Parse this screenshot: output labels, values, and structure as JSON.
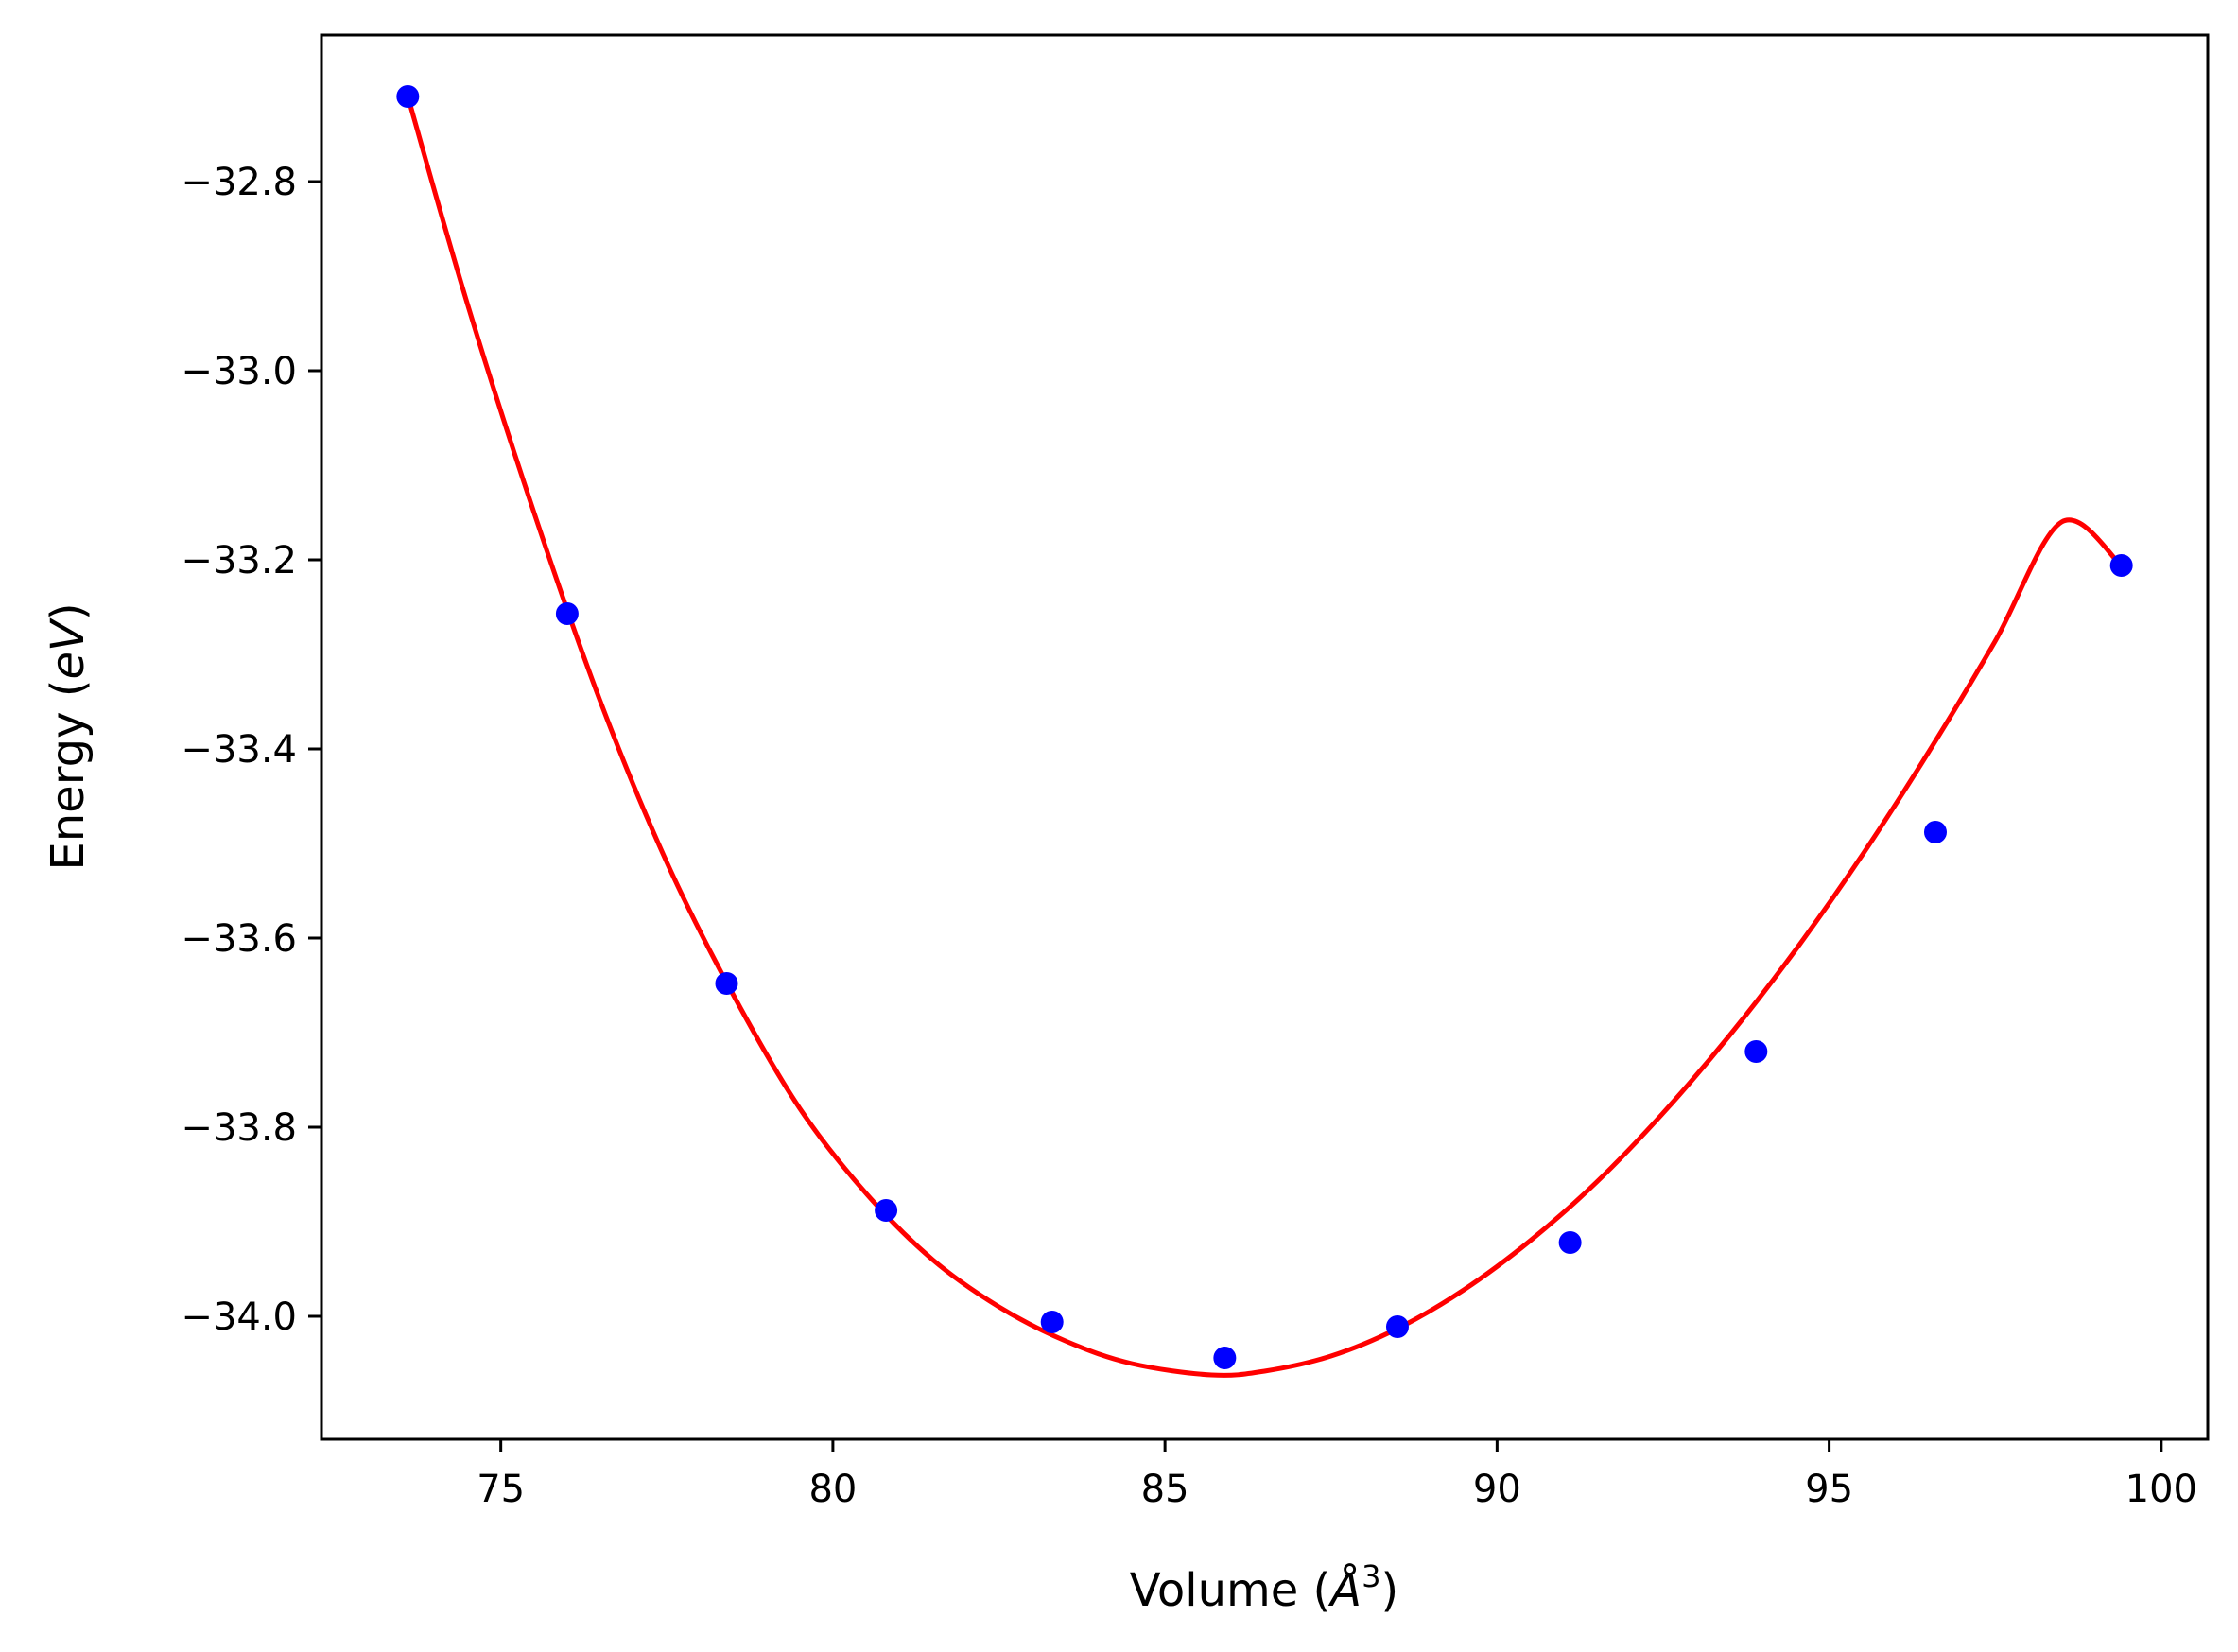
{
  "chart_data": {
    "type": "scatter",
    "title": "",
    "xlabel_parts": {
      "prefix": "Volume (",
      "unit": "Å",
      "exponent": "3",
      "suffix": ")"
    },
    "ylabel_parts": {
      "prefix": "Energy (",
      "unit": "eV",
      "suffix": ")"
    },
    "xlim": [
      72.3,
      100.7
    ],
    "ylim": [
      -34.13,
      -32.645
    ],
    "x_ticks": [
      75,
      80,
      85,
      90,
      95,
      100
    ],
    "x_tick_labels": [
      "75",
      "80",
      "85",
      "90",
      "95",
      "100"
    ],
    "y_ticks": [
      -32.8,
      -33.0,
      -33.2,
      -33.4,
      -33.6,
      -33.8,
      -34.0
    ],
    "y_tick_labels": [
      "−32.8",
      "−33.0",
      "−33.2",
      "−33.4",
      "−33.6",
      "−33.8",
      "−34.0"
    ],
    "grid": false,
    "legend": "none",
    "series": [
      {
        "kind": "points",
        "color": "#0000ff",
        "x": [
          73.6,
          76.0,
          78.4,
          80.8,
          83.3,
          85.9,
          88.5,
          91.1,
          93.9,
          96.6,
          99.4
        ],
        "y": [
          -32.71,
          -33.257,
          -33.648,
          -33.888,
          -34.006,
          -34.044,
          -34.011,
          -33.922,
          -33.72,
          -33.488,
          -33.206
        ]
      },
      {
        "kind": "fit-curve",
        "color": "#ff0000",
        "x": [
          73.6,
          74.5,
          75.5,
          76.5,
          77.5,
          78.5,
          79.5,
          80.5,
          81.5,
          82.5,
          83.5,
          84.5,
          85.7,
          86.5,
          87.5,
          88.5,
          89.5,
          90.5,
          91.5,
          92.5,
          93.5,
          94.5,
          95.5,
          96.5,
          97.5,
          98.5,
          99.4
        ],
        "y": [
          -32.71,
          -32.93,
          -33.15,
          -33.35,
          -33.52,
          -33.66,
          -33.78,
          -33.87,
          -33.94,
          -33.99,
          -34.026,
          -34.05,
          -34.062,
          -34.058,
          -34.042,
          -34.013,
          -33.972,
          -33.92,
          -33.858,
          -33.785,
          -33.703,
          -33.612,
          -33.512,
          -33.403,
          -33.286,
          -33.16,
          -33.206
        ]
      }
    ]
  }
}
